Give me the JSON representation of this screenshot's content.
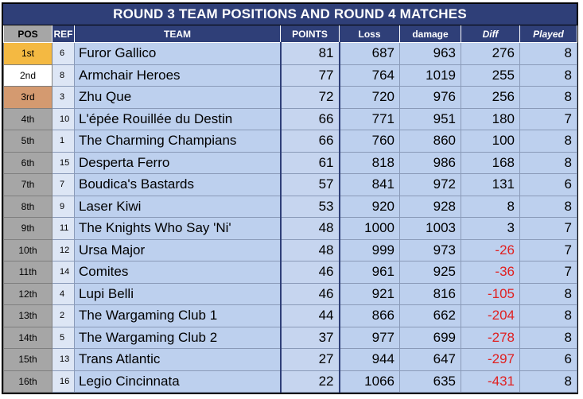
{
  "title": "ROUND 3 TEAM POSITIONS AND ROUND 4 MATCHES",
  "headers": {
    "pos": "POS",
    "ref": "REF",
    "team": "TEAM",
    "points": "POINTS",
    "loss": "Loss",
    "damage": "damage",
    "diff": "Diff",
    "played": "Played"
  },
  "rows": [
    {
      "pos": "1st",
      "ref": "6",
      "team": "Furor Gallico",
      "points": "81",
      "loss": "687",
      "damage": "963",
      "diff": "276",
      "played": "8"
    },
    {
      "pos": "2nd",
      "ref": "8",
      "team": "Armchair Heroes",
      "points": "77",
      "loss": "764",
      "damage": "1019",
      "diff": "255",
      "played": "8"
    },
    {
      "pos": "3rd",
      "ref": "3",
      "team": "Zhu Que",
      "points": "72",
      "loss": "720",
      "damage": "976",
      "diff": "256",
      "played": "8"
    },
    {
      "pos": "4th",
      "ref": "10",
      "team": "L'épée Rouillée du Destin",
      "points": "66",
      "loss": "771",
      "damage": "951",
      "diff": "180",
      "played": "7"
    },
    {
      "pos": "5th",
      "ref": "1",
      "team": "The Charming Champians",
      "points": "66",
      "loss": "760",
      "damage": "860",
      "diff": "100",
      "played": "8"
    },
    {
      "pos": "6th",
      "ref": "15",
      "team": "Desperta Ferro",
      "points": "61",
      "loss": "818",
      "damage": "986",
      "diff": "168",
      "played": "8"
    },
    {
      "pos": "7th",
      "ref": "7",
      "team": "Boudica's Bastards",
      "points": "57",
      "loss": "841",
      "damage": "972",
      "diff": "131",
      "played": "6"
    },
    {
      "pos": "8th",
      "ref": "9",
      "team": "Laser Kiwi",
      "points": "53",
      "loss": "920",
      "damage": "928",
      "diff": "8",
      "played": "8"
    },
    {
      "pos": "9th",
      "ref": "11",
      "team": "The Knights Who Say 'Ni'",
      "points": "48",
      "loss": "1000",
      "damage": "1003",
      "diff": "3",
      "played": "7"
    },
    {
      "pos": "10th",
      "ref": "12",
      "team": "Ursa Major",
      "points": "48",
      "loss": "999",
      "damage": "973",
      "diff": "-26",
      "played": "7"
    },
    {
      "pos": "11th",
      "ref": "14",
      "team": "Comites",
      "points": "46",
      "loss": "961",
      "damage": "925",
      "diff": "-36",
      "played": "7"
    },
    {
      "pos": "12th",
      "ref": "4",
      "team": "Lupi Belli",
      "points": "46",
      "loss": "921",
      "damage": "816",
      "diff": "-105",
      "played": "8"
    },
    {
      "pos": "13th",
      "ref": "2",
      "team": "The Wargaming Club 1",
      "points": "44",
      "loss": "866",
      "damage": "662",
      "diff": "-204",
      "played": "8"
    },
    {
      "pos": "14th",
      "ref": "5",
      "team": "The Wargaming Club 2",
      "points": "37",
      "loss": "977",
      "damage": "699",
      "diff": "-278",
      "played": "8"
    },
    {
      "pos": "15th",
      "ref": "13",
      "team": "Trans Atlantic",
      "points": "27",
      "loss": "944",
      "damage": "647",
      "diff": "-297",
      "played": "6"
    },
    {
      "pos": "16th",
      "ref": "16",
      "team": "Legio Cincinnata",
      "points": "22",
      "loss": "1066",
      "damage": "635",
      "diff": "-431",
      "played": "8"
    }
  ]
}
